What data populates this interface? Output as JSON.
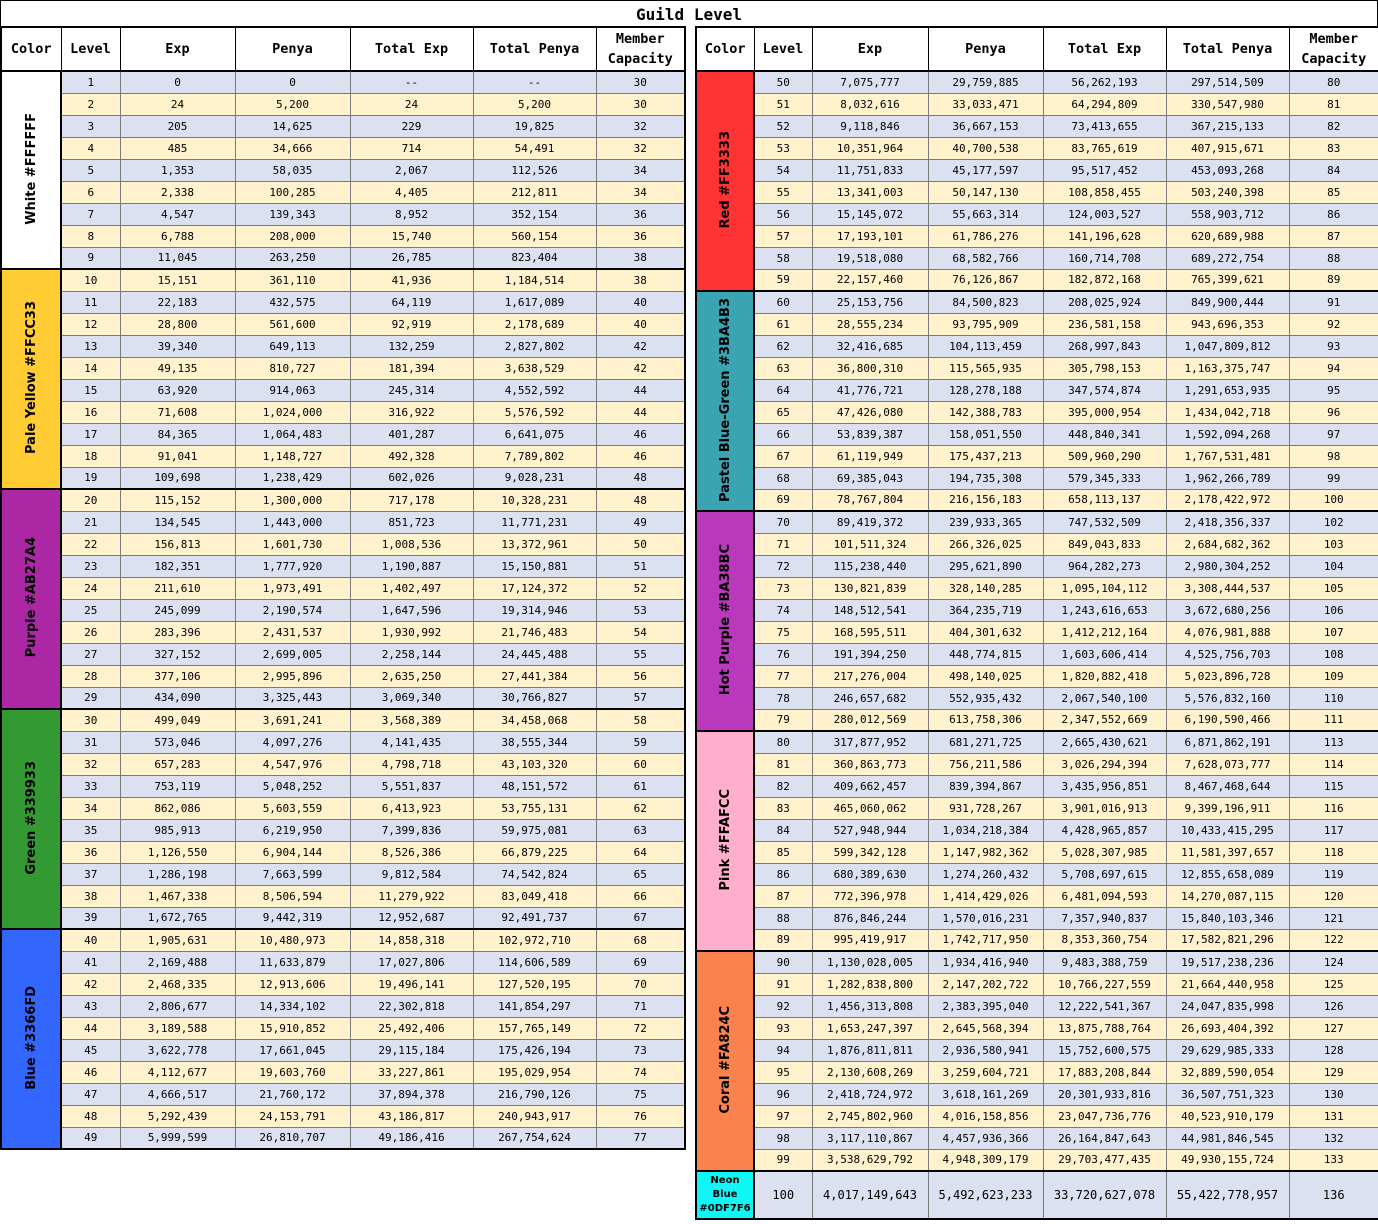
{
  "title": "Guild Level",
  "headers": {
    "color": "Color",
    "level": "Level",
    "exp": "Exp",
    "penya": "Penya",
    "total_exp": "Total Exp",
    "total_penya": "Total Penya",
    "member_capacity": "Member Capacity"
  },
  "groups": [
    {
      "label": "White #FFFFFF",
      "hex": "#FFFFFF",
      "rows": [
        [
          "1",
          "0",
          "0",
          "--",
          "--",
          "30"
        ],
        [
          "2",
          "24",
          "5,200",
          "24",
          "5,200",
          "30"
        ],
        [
          "3",
          "205",
          "14,625",
          "229",
          "19,825",
          "32"
        ],
        [
          "4",
          "485",
          "34,666",
          "714",
          "54,491",
          "32"
        ],
        [
          "5",
          "1,353",
          "58,035",
          "2,067",
          "112,526",
          "34"
        ],
        [
          "6",
          "2,338",
          "100,285",
          "4,405",
          "212,811",
          "34"
        ],
        [
          "7",
          "4,547",
          "139,343",
          "8,952",
          "352,154",
          "36"
        ],
        [
          "8",
          "6,788",
          "208,000",
          "15,740",
          "560,154",
          "36"
        ],
        [
          "9",
          "11,045",
          "263,250",
          "26,785",
          "823,404",
          "38"
        ]
      ]
    },
    {
      "label": "Pale Yellow #FFCC33",
      "hex": "#FFCC33",
      "rows": [
        [
          "10",
          "15,151",
          "361,110",
          "41,936",
          "1,184,514",
          "38"
        ],
        [
          "11",
          "22,183",
          "432,575",
          "64,119",
          "1,617,089",
          "40"
        ],
        [
          "12",
          "28,800",
          "561,600",
          "92,919",
          "2,178,689",
          "40"
        ],
        [
          "13",
          "39,340",
          "649,113",
          "132,259",
          "2,827,802",
          "42"
        ],
        [
          "14",
          "49,135",
          "810,727",
          "181,394",
          "3,638,529",
          "42"
        ],
        [
          "15",
          "63,920",
          "914,063",
          "245,314",
          "4,552,592",
          "44"
        ],
        [
          "16",
          "71,608",
          "1,024,000",
          "316,922",
          "5,576,592",
          "44"
        ],
        [
          "17",
          "84,365",
          "1,064,483",
          "401,287",
          "6,641,075",
          "46"
        ],
        [
          "18",
          "91,041",
          "1,148,727",
          "492,328",
          "7,789,802",
          "46"
        ],
        [
          "19",
          "109,698",
          "1,238,429",
          "602,026",
          "9,028,231",
          "48"
        ]
      ]
    },
    {
      "label": "Purple #AB27A4",
      "hex": "#AB27A4",
      "rows": [
        [
          "20",
          "115,152",
          "1,300,000",
          "717,178",
          "10,328,231",
          "48"
        ],
        [
          "21",
          "134,545",
          "1,443,000",
          "851,723",
          "11,771,231",
          "49"
        ],
        [
          "22",
          "156,813",
          "1,601,730",
          "1,008,536",
          "13,372,961",
          "50"
        ],
        [
          "23",
          "182,351",
          "1,777,920",
          "1,190,887",
          "15,150,881",
          "51"
        ],
        [
          "24",
          "211,610",
          "1,973,491",
          "1,402,497",
          "17,124,372",
          "52"
        ],
        [
          "25",
          "245,099",
          "2,190,574",
          "1,647,596",
          "19,314,946",
          "53"
        ],
        [
          "26",
          "283,396",
          "2,431,537",
          "1,930,992",
          "21,746,483",
          "54"
        ],
        [
          "27",
          "327,152",
          "2,699,005",
          "2,258,144",
          "24,445,488",
          "55"
        ],
        [
          "28",
          "377,106",
          "2,995,896",
          "2,635,250",
          "27,441,384",
          "56"
        ],
        [
          "29",
          "434,090",
          "3,325,443",
          "3,069,340",
          "30,766,827",
          "57"
        ]
      ]
    },
    {
      "label": "Green #339933",
      "hex": "#339933",
      "rows": [
        [
          "30",
          "499,049",
          "3,691,241",
          "3,568,389",
          "34,458,068",
          "58"
        ],
        [
          "31",
          "573,046",
          "4,097,276",
          "4,141,435",
          "38,555,344",
          "59"
        ],
        [
          "32",
          "657,283",
          "4,547,976",
          "4,798,718",
          "43,103,320",
          "60"
        ],
        [
          "33",
          "753,119",
          "5,048,252",
          "5,551,837",
          "48,151,572",
          "61"
        ],
        [
          "34",
          "862,086",
          "5,603,559",
          "6,413,923",
          "53,755,131",
          "62"
        ],
        [
          "35",
          "985,913",
          "6,219,950",
          "7,399,836",
          "59,975,081",
          "63"
        ],
        [
          "36",
          "1,126,550",
          "6,904,144",
          "8,526,386",
          "66,879,225",
          "64"
        ],
        [
          "37",
          "1,286,198",
          "7,663,599",
          "9,812,584",
          "74,542,824",
          "65"
        ],
        [
          "38",
          "1,467,338",
          "8,506,594",
          "11,279,922",
          "83,049,418",
          "66"
        ],
        [
          "39",
          "1,672,765",
          "9,442,319",
          "12,952,687",
          "92,491,737",
          "67"
        ]
      ]
    },
    {
      "label": "Blue #3366FD",
      "hex": "#3366FD",
      "rows": [
        [
          "40",
          "1,905,631",
          "10,480,973",
          "14,858,318",
          "102,972,710",
          "68"
        ],
        [
          "41",
          "2,169,488",
          "11,633,879",
          "17,027,806",
          "114,606,589",
          "69"
        ],
        [
          "42",
          "2,468,335",
          "12,913,606",
          "19,496,141",
          "127,520,195",
          "70"
        ],
        [
          "43",
          "2,806,677",
          "14,334,102",
          "22,302,818",
          "141,854,297",
          "71"
        ],
        [
          "44",
          "3,189,588",
          "15,910,852",
          "25,492,406",
          "157,765,149",
          "72"
        ],
        [
          "45",
          "3,622,778",
          "17,661,045",
          "29,115,184",
          "175,426,194",
          "73"
        ],
        [
          "46",
          "4,112,677",
          "19,603,760",
          "33,227,861",
          "195,029,954",
          "74"
        ],
        [
          "47",
          "4,666,517",
          "21,760,172",
          "37,894,378",
          "216,790,126",
          "75"
        ],
        [
          "48",
          "5,292,439",
          "24,153,791",
          "43,186,817",
          "240,943,917",
          "76"
        ],
        [
          "49",
          "5,999,599",
          "26,810,707",
          "49,186,416",
          "267,754,624",
          "77"
        ]
      ]
    },
    {
      "label": "Red #FF3333",
      "hex": "#FF3333",
      "rows": [
        [
          "50",
          "7,075,777",
          "29,759,885",
          "56,262,193",
          "297,514,509",
          "80"
        ],
        [
          "51",
          "8,032,616",
          "33,033,471",
          "64,294,809",
          "330,547,980",
          "81"
        ],
        [
          "52",
          "9,118,846",
          "36,667,153",
          "73,413,655",
          "367,215,133",
          "82"
        ],
        [
          "53",
          "10,351,964",
          "40,700,538",
          "83,765,619",
          "407,915,671",
          "83"
        ],
        [
          "54",
          "11,751,833",
          "45,177,597",
          "95,517,452",
          "453,093,268",
          "84"
        ],
        [
          "55",
          "13,341,003",
          "50,147,130",
          "108,858,455",
          "503,240,398",
          "85"
        ],
        [
          "56",
          "15,145,072",
          "55,663,314",
          "124,003,527",
          "558,903,712",
          "86"
        ],
        [
          "57",
          "17,193,101",
          "61,786,276",
          "141,196,628",
          "620,689,988",
          "87"
        ],
        [
          "58",
          "19,518,080",
          "68,582,766",
          "160,714,708",
          "689,272,754",
          "88"
        ],
        [
          "59",
          "22,157,460",
          "76,126,867",
          "182,872,168",
          "765,399,621",
          "89"
        ]
      ]
    },
    {
      "label": "Pastel Blue-Green #3BA4B3",
      "hex": "#3BA4B3",
      "rows": [
        [
          "60",
          "25,153,756",
          "84,500,823",
          "208,025,924",
          "849,900,444",
          "91"
        ],
        [
          "61",
          "28,555,234",
          "93,795,909",
          "236,581,158",
          "943,696,353",
          "92"
        ],
        [
          "62",
          "32,416,685",
          "104,113,459",
          "268,997,843",
          "1,047,809,812",
          "93"
        ],
        [
          "63",
          "36,800,310",
          "115,565,935",
          "305,798,153",
          "1,163,375,747",
          "94"
        ],
        [
          "64",
          "41,776,721",
          "128,278,188",
          "347,574,874",
          "1,291,653,935",
          "95"
        ],
        [
          "65",
          "47,426,080",
          "142,388,783",
          "395,000,954",
          "1,434,042,718",
          "96"
        ],
        [
          "66",
          "53,839,387",
          "158,051,550",
          "448,840,341",
          "1,592,094,268",
          "97"
        ],
        [
          "67",
          "61,119,949",
          "175,437,213",
          "509,960,290",
          "1,767,531,481",
          "98"
        ],
        [
          "68",
          "69,385,043",
          "194,735,308",
          "579,345,333",
          "1,962,266,789",
          "99"
        ],
        [
          "69",
          "78,767,804",
          "216,156,183",
          "658,113,137",
          "2,178,422,972",
          "100"
        ]
      ]
    },
    {
      "label": "Hot Purple #BA38BC",
      "hex": "#BA38BC",
      "rows": [
        [
          "70",
          "89,419,372",
          "239,933,365",
          "747,532,509",
          "2,418,356,337",
          "102"
        ],
        [
          "71",
          "101,511,324",
          "266,326,025",
          "849,043,833",
          "2,684,682,362",
          "103"
        ],
        [
          "72",
          "115,238,440",
          "295,621,890",
          "964,282,273",
          "2,980,304,252",
          "104"
        ],
        [
          "73",
          "130,821,839",
          "328,140,285",
          "1,095,104,112",
          "3,308,444,537",
          "105"
        ],
        [
          "74",
          "148,512,541",
          "364,235,719",
          "1,243,616,653",
          "3,672,680,256",
          "106"
        ],
        [
          "75",
          "168,595,511",
          "404,301,632",
          "1,412,212,164",
          "4,076,981,888",
          "107"
        ],
        [
          "76",
          "191,394,250",
          "448,774,815",
          "1,603,606,414",
          "4,525,756,703",
          "108"
        ],
        [
          "77",
          "217,276,004",
          "498,140,025",
          "1,820,882,418",
          "5,023,896,728",
          "109"
        ],
        [
          "78",
          "246,657,682",
          "552,935,432",
          "2,067,540,100",
          "5,576,832,160",
          "110"
        ],
        [
          "79",
          "280,012,569",
          "613,758,306",
          "2,347,552,669",
          "6,190,590,466",
          "111"
        ]
      ]
    },
    {
      "label": "Pink #FFAFCC",
      "hex": "#FFAFCC",
      "rows": [
        [
          "80",
          "317,877,952",
          "681,271,725",
          "2,665,430,621",
          "6,871,862,191",
          "113"
        ],
        [
          "81",
          "360,863,773",
          "756,211,586",
          "3,026,294,394",
          "7,628,073,777",
          "114"
        ],
        [
          "82",
          "409,662,457",
          "839,394,867",
          "3,435,956,851",
          "8,467,468,644",
          "115"
        ],
        [
          "83",
          "465,060,062",
          "931,728,267",
          "3,901,016,913",
          "9,399,196,911",
          "116"
        ],
        [
          "84",
          "527,948,944",
          "1,034,218,384",
          "4,428,965,857",
          "10,433,415,295",
          "117"
        ],
        [
          "85",
          "599,342,128",
          "1,147,982,362",
          "5,028,307,985",
          "11,581,397,657",
          "118"
        ],
        [
          "86",
          "680,389,630",
          "1,274,260,432",
          "5,708,697,615",
          "12,855,658,089",
          "119"
        ],
        [
          "87",
          "772,396,978",
          "1,414,429,026",
          "6,481,094,593",
          "14,270,087,115",
          "120"
        ],
        [
          "88",
          "876,846,244",
          "1,570,016,231",
          "7,357,940,837",
          "15,840,103,346",
          "121"
        ],
        [
          "89",
          "995,419,917",
          "1,742,717,950",
          "8,353,360,754",
          "17,582,821,296",
          "122"
        ]
      ]
    },
    {
      "label": "Coral #FA824C",
      "hex": "#FA824C",
      "rows": [
        [
          "90",
          "1,130,028,005",
          "1,934,416,940",
          "9,483,388,759",
          "19,517,238,236",
          "124"
        ],
        [
          "91",
          "1,282,838,800",
          "2,147,202,722",
          "10,766,227,559",
          "21,664,440,958",
          "125"
        ],
        [
          "92",
          "1,456,313,808",
          "2,383,395,040",
          "12,222,541,367",
          "24,047,835,998",
          "126"
        ],
        [
          "93",
          "1,653,247,397",
          "2,645,568,394",
          "13,875,788,764",
          "26,693,404,392",
          "127"
        ],
        [
          "94",
          "1,876,811,811",
          "2,936,580,941",
          "15,752,600,575",
          "29,629,985,333",
          "128"
        ],
        [
          "95",
          "2,130,608,269",
          "3,259,604,721",
          "17,883,208,844",
          "32,889,590,054",
          "129"
        ],
        [
          "96",
          "2,418,724,972",
          "3,618,161,269",
          "20,301,933,816",
          "36,507,751,323",
          "130"
        ],
        [
          "97",
          "2,745,802,960",
          "4,016,158,856",
          "23,047,736,776",
          "40,523,910,179",
          "131"
        ],
        [
          "98",
          "3,117,110,867",
          "4,457,936,366",
          "26,164,847,643",
          "44,981,846,545",
          "132"
        ],
        [
          "99",
          "3,538,629,792",
          "4,948,309,179",
          "29,703,477,435",
          "49,930,155,724",
          "133"
        ]
      ]
    },
    {
      "label": "Neon Blue #0DF7F6",
      "hex": "#0DF7F6",
      "rows": [
        [
          "100",
          "4,017,149,643",
          "5,492,623,233",
          "33,720,627,078",
          "55,422,778,957",
          "136"
        ]
      ]
    }
  ]
}
